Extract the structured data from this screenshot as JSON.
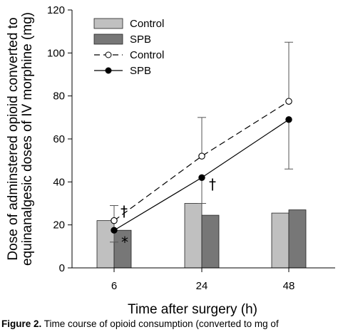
{
  "chart_data": {
    "type": "bar+line",
    "x_categories": [
      "6",
      "24",
      "48"
    ],
    "xlabel": "Time after surgery (h)",
    "ylabel_line1": "Dose of adminstered opioid converted to",
    "ylabel_line2": "equinanalgesic doses of IV morphine (mg)",
    "ylim": [
      0,
      120
    ],
    "yticks": [
      0,
      20,
      40,
      60,
      80,
      100,
      120
    ],
    "grid": false,
    "legend_position": "top-left",
    "bar_series": [
      {
        "name": "Control",
        "values": [
          22,
          30,
          25.5
        ],
        "color": "#c0c0c0"
      },
      {
        "name": "SPB",
        "values": [
          17.5,
          24.5,
          27
        ],
        "color": "#777777"
      }
    ],
    "line_series": [
      {
        "name": "Control",
        "values": [
          22,
          52,
          77.5
        ],
        "error_upper": [
          29,
          70,
          105
        ],
        "marker": "open-circle",
        "style": "dashed"
      },
      {
        "name": "SPB",
        "values": [
          17.5,
          42,
          69
        ],
        "error_lower": [
          12,
          30,
          46
        ],
        "marker": "filled-circle",
        "style": "solid"
      }
    ],
    "annotations": [
      {
        "text": "†",
        "x": "6",
        "series": "Control"
      },
      {
        "text": "*",
        "x": "6",
        "series": "SPB"
      },
      {
        "text": "†",
        "x": "24",
        "series": "SPB"
      }
    ]
  },
  "caption": {
    "label": "Figure 2.",
    "text": "Time course of opioid consumption (converted to mg of"
  }
}
